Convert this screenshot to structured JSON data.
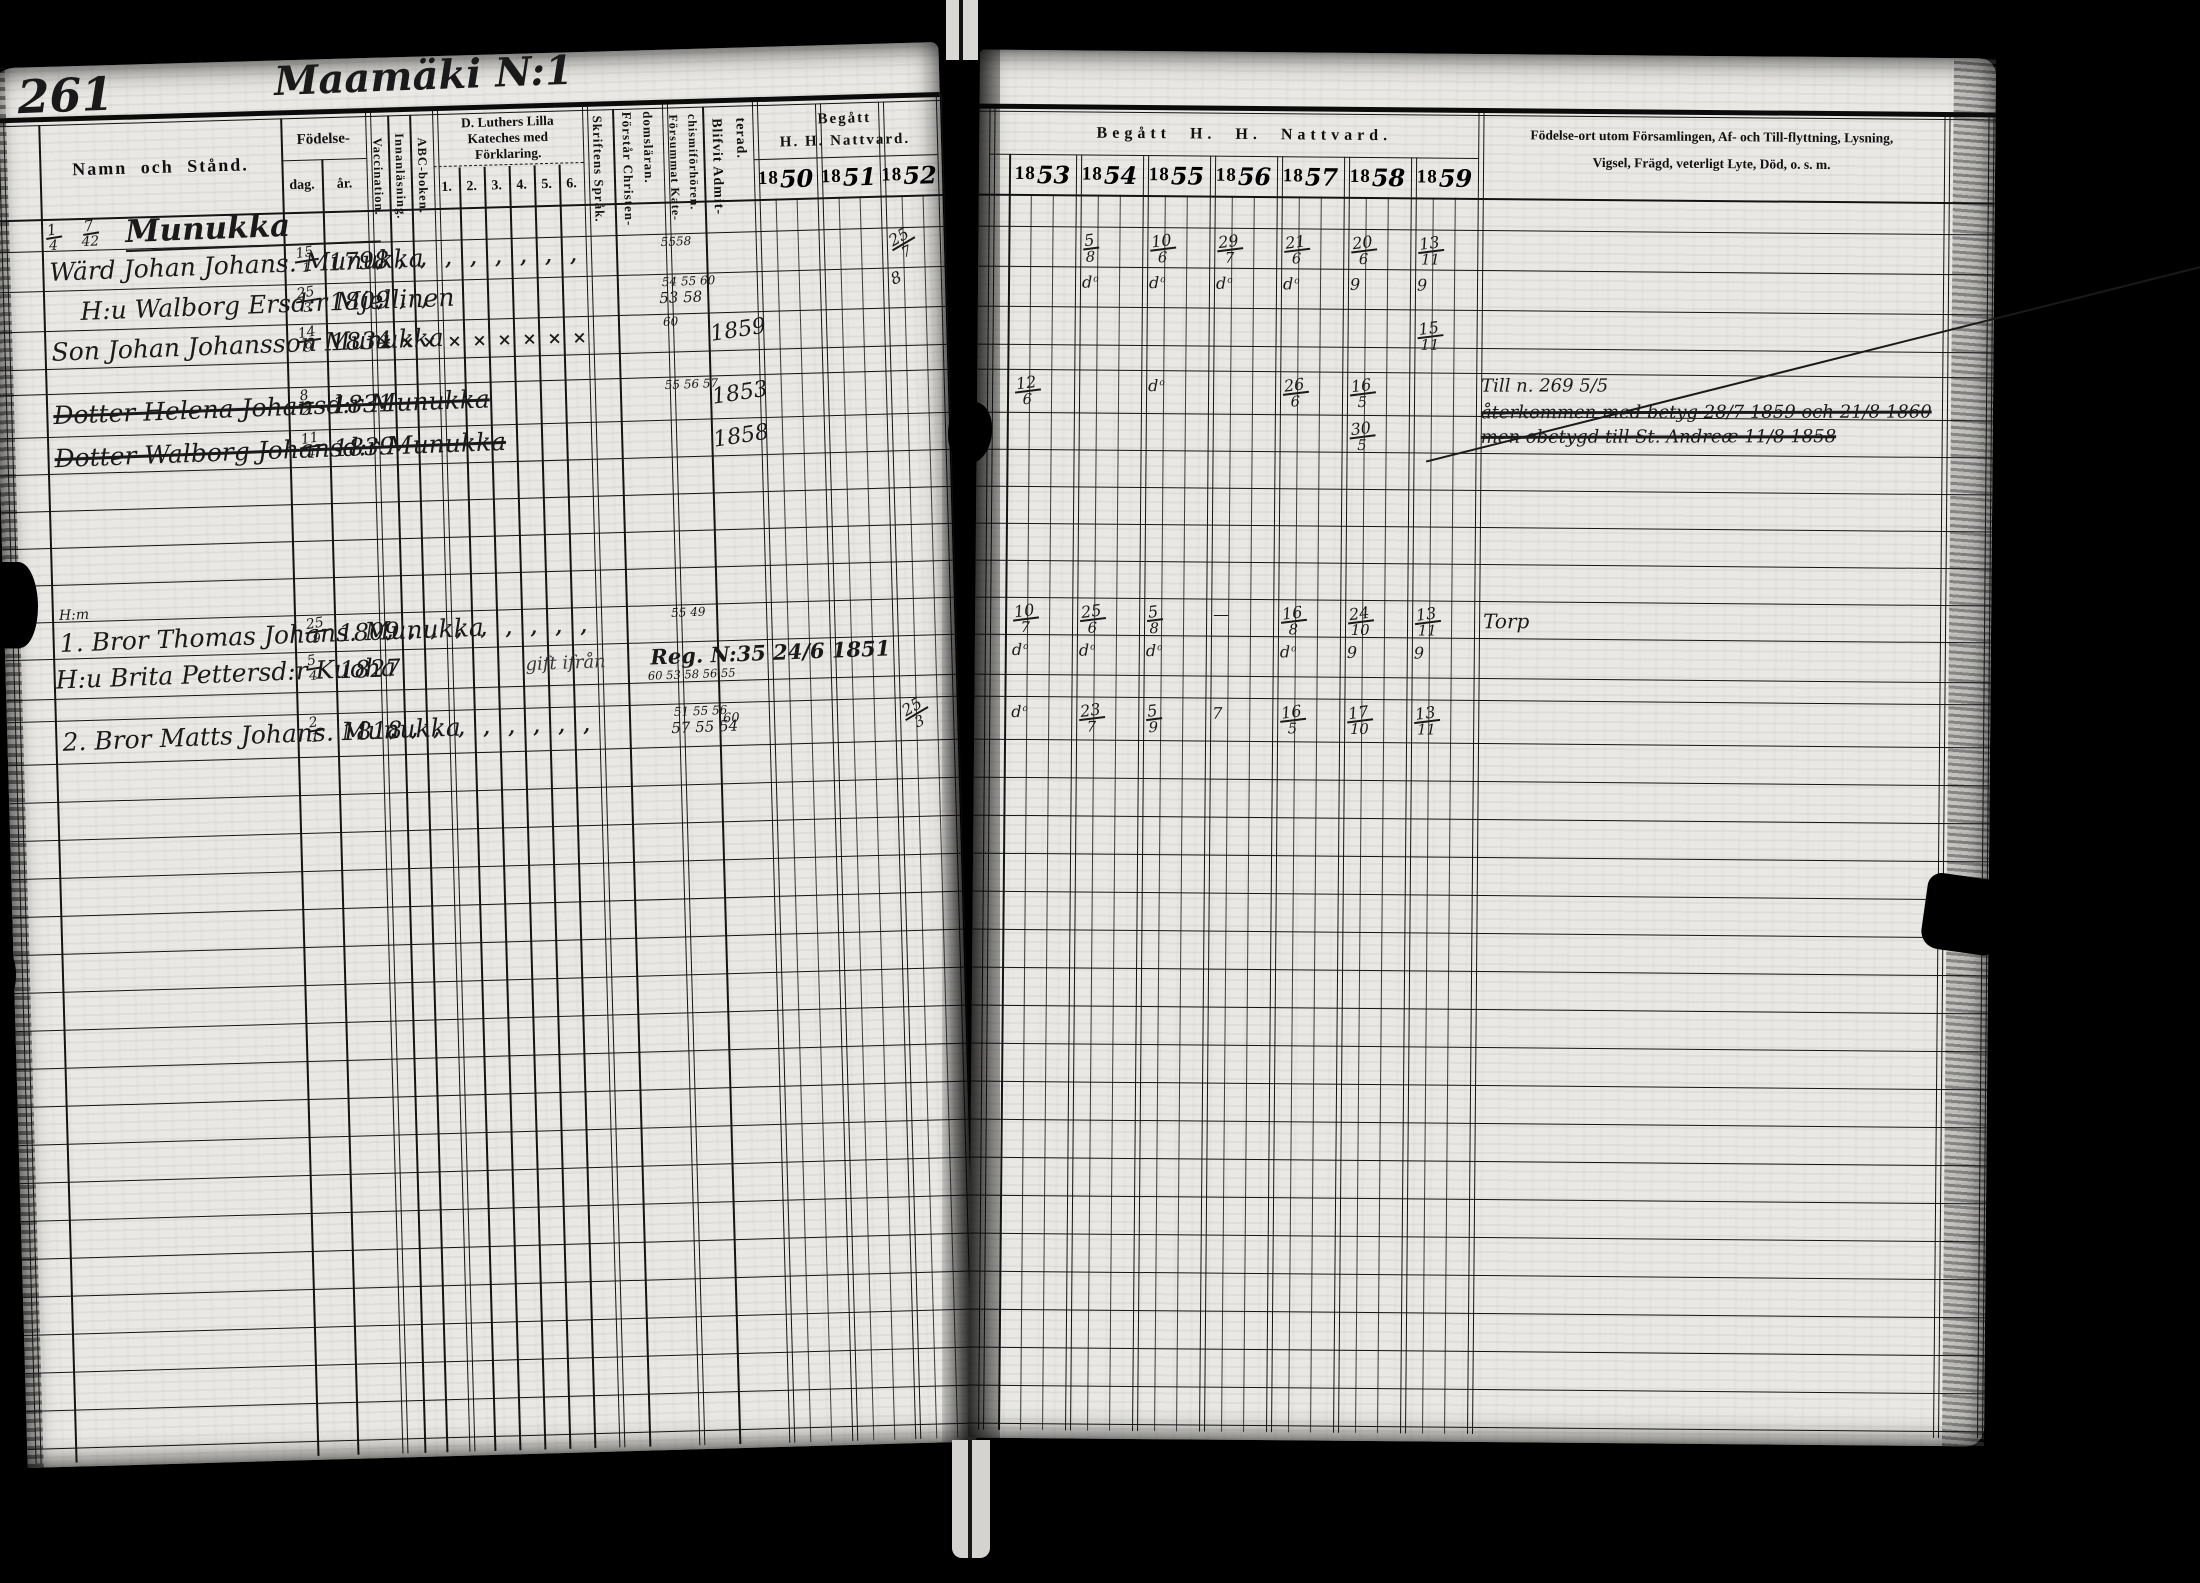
{
  "colors": {
    "paper": "#e9e8e4",
    "ink": "#1a1a1a",
    "line": "#141414",
    "background": "#000000"
  },
  "page": {
    "number": "261",
    "title": "Maamäki N:1"
  },
  "left_header": {
    "namn": "Namn och Stånd.",
    "fodelse": "Födelse-",
    "dag": "dag.",
    "ar": "år.",
    "vaccination": "Vaccination.",
    "innanlasning": "Innanläsning.",
    "abc": "ABC-boken.",
    "kateches": [
      "D. Luthers Lilla",
      "Kateches med",
      "Förklaring."
    ],
    "kateches_cols": [
      "1.",
      "2.",
      "3.",
      "4.",
      "5.",
      "6."
    ],
    "skriftens": "Skriftens Språk.",
    "forstar": [
      "Förstår Christen-",
      "domsläran."
    ],
    "forsummat": [
      "Försummat Kate-",
      "chismiförhören."
    ],
    "blifvit": [
      "Blifvit Admit-",
      "terad."
    ],
    "begatt": [
      "Begått",
      "H. H. Nattvard."
    ],
    "years": [
      "1850",
      "1851",
      "1852"
    ]
  },
  "right_header": {
    "begatt": "Begått H. H. Nattvard.",
    "years": [
      "1853",
      "1854",
      "1855",
      "1856",
      "1857",
      "1858",
      "1859"
    ],
    "notes": [
      "Födelse-ort utom Församlingen, Af- och Till-flyttning, Lysning,",
      "Vigsel, Frägd, veterligt Lyte, Död, o. s. m."
    ]
  },
  "rows": [
    {
      "id": "farm",
      "share": "1/4",
      "number": "7/42",
      "name": "Munukka"
    },
    {
      "id": "johan",
      "name": "Wärd Johan Johans. Munukka",
      "dag": "15/1",
      "ar": "1798",
      "marks": {
        "type": "tick",
        "count": 9
      },
      "forsummat": "5558",
      "y1852": "25/7",
      "y1854": "5/8",
      "y1855": "10/6",
      "y1856": "29/7",
      "y1857": "21/6",
      "y1858": "20/6",
      "y1859": "13/11"
    },
    {
      "id": "walborg_e",
      "name": "H:u Walborg Ersd:r Mjellinen",
      "dag": "25/3",
      "ar": "1809",
      "marks": {
        "type": "tick",
        "count": 3
      },
      "forsummat": "54 55 60|53 58",
      "y1852": "8",
      "y1854": "d:o",
      "y1855": "d:o",
      "y1856": "d:o",
      "y1857": "d:o",
      "y1858": "9",
      "y1859": "9"
    },
    {
      "id": "son_johan",
      "name": "Son Johan Johansson Munukka",
      "dag": "14/9",
      "ar": "1834",
      "marks": {
        "type": "x",
        "count": 9
      },
      "forsummat": "60",
      "blifvit": "1859",
      "y1859": "15/11*"
    },
    {
      "id": "helena",
      "struck": true,
      "name": "Dotter Helena Johansd:r Munukka",
      "dag": "8/2",
      "ar": "1831",
      "forsummat": "55 56 57",
      "blifvit": "1853",
      "y1853": "12/6",
      "y1855": "d:o",
      "y1857": "26/6",
      "y1858": "16/5",
      "note_lines": [
        "Till n. 269 5/5",
        "återkommen med betyg 28/7 1859 och 21/8 1860*",
        "men obetygd till St. Andreæ 11/8 1858*"
      ]
    },
    {
      "id": "walborg_j",
      "struck": true,
      "name": "Dotter Walborg Johansd:r Munukka",
      "dag": "11/4",
      "ar": "1839",
      "blifvit": "1858",
      "y1858": "30/5"
    },
    {
      "id": "thomas",
      "prefix": "H:m",
      "name": "1. Bror Thomas Johans. Munukka",
      "dag": "25/9",
      "ar": "1809",
      "marks": {
        "type": "tick",
        "count": 9
      },
      "forsummat": "55 49",
      "y1853": "10/7",
      "y1854": "25/6",
      "y1855": "5/8",
      "y1856": "—",
      "y1857": "16/8",
      "y1858": "24/10",
      "y1859": "13/11",
      "note": "Torp"
    },
    {
      "id": "brita",
      "name": "H:u Brita Pettersd:r Kuoha",
      "dag": "5/4",
      "ar": "1827",
      "annotation": "gift ifrån",
      "annotation_reg": "Reg. N:35 24/6 1851",
      "annotation2": "60   53 58 56 55",
      "y1853": "d:o",
      "y1854": "d:o",
      "y1855": "d:o",
      "y1857": "d:o",
      "y1858": "9",
      "y1859": "9"
    },
    {
      "id": "matts",
      "name": "2. Bror Matts Johans. Munukka",
      "dag": "2/1",
      "ar": "1818",
      "marks": {
        "type": "tick",
        "count": 9
      },
      "forsummat": "51 55 56|57 55 54",
      "forsummat_extra": "60",
      "y1852": "25/3",
      "y1853": "d:o",
      "y1854": "23/7",
      "y1855": "5/9",
      "y1856": "7",
      "y1857": "16/5",
      "y1858": "17/10",
      "y1859": "13/11"
    }
  ]
}
